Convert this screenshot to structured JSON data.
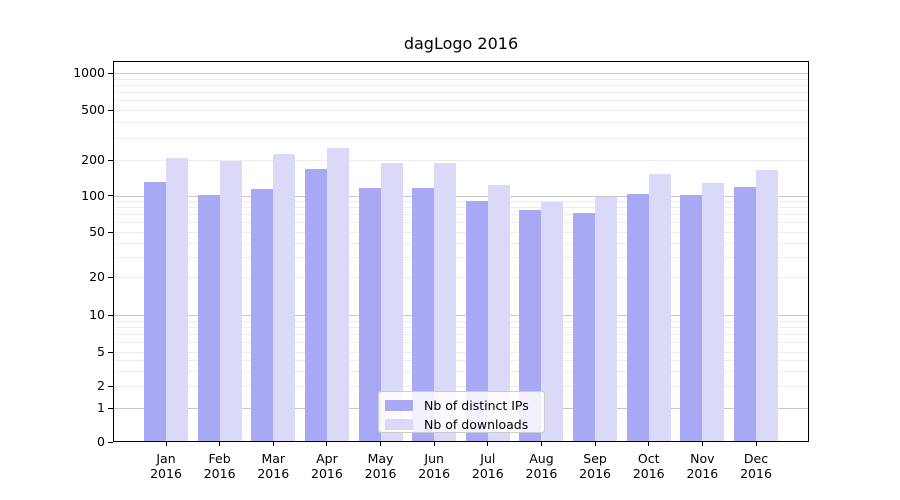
{
  "chart_data": {
    "type": "bar",
    "title": "dagLogo 2016",
    "categories": [
      "Jan",
      "Feb",
      "Mar",
      "Apr",
      "May",
      "Jun",
      "Jul",
      "Aug",
      "Sep",
      "Oct",
      "Nov",
      "Dec"
    ],
    "x_tick_second_line": "2016",
    "series": [
      {
        "name": "Nb of distinct IPs",
        "color": "#a8a8f4",
        "values": [
          129,
          101,
          114,
          167,
          116,
          116,
          90,
          76,
          72,
          103,
          101,
          119
        ]
      },
      {
        "name": "Nb of downloads",
        "color": "#dadaf8",
        "values": [
          209,
          197,
          225,
          247,
          189,
          189,
          123,
          88,
          97,
          152,
          128,
          166
        ]
      }
    ],
    "y_axis": {
      "scale": "symlog",
      "tick_values": [
        0,
        1,
        2,
        5,
        10,
        20,
        50,
        100,
        200,
        500,
        1000
      ],
      "tick_labels": [
        "0",
        "1",
        "2",
        "5",
        "10",
        "20",
        "50",
        "100",
        "200",
        "500",
        "1000"
      ]
    },
    "ylim": [
      0,
      1200
    ],
    "grid": true,
    "legend_position": "lower center"
  }
}
